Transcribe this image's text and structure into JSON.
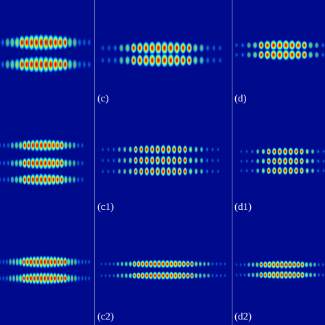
{
  "panels": [
    {
      "label": "(c)"
    },
    {
      "label": "(d)"
    },
    {
      "label": "(c1)"
    },
    {
      "label": "(d1)"
    },
    {
      "label": "(c2)"
    },
    {
      "label": "(d2)"
    }
  ]
}
